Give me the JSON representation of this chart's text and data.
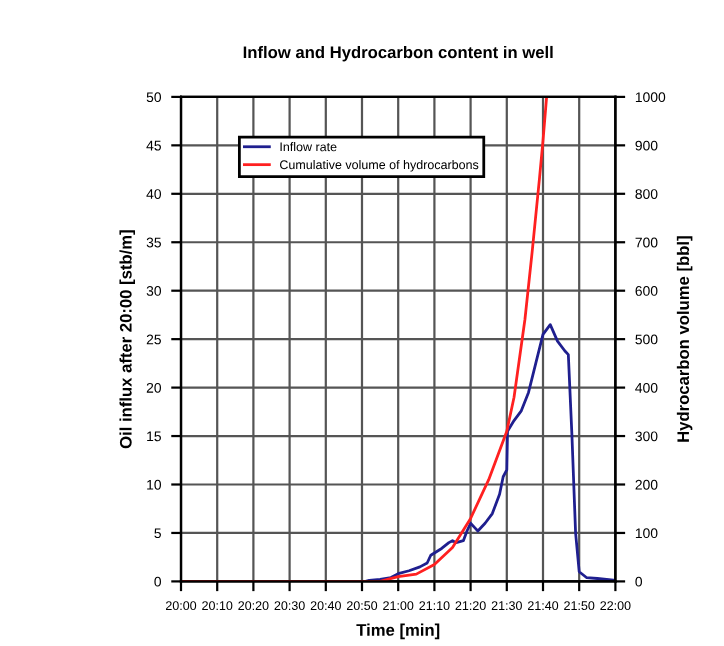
{
  "chart_data": {
    "type": "line",
    "title": "Inflow and Hydrocarbon content in well",
    "xlabel": "Time [min]",
    "ylabel": "Oil influx after 20:00 [stb/m]",
    "y2label": "Hydrocarbon volume [bbl]",
    "xlim": [
      20,
      22
    ],
    "xticks": [
      {
        "value": 20,
        "label": "20:00"
      },
      {
        "value": 20.1667,
        "label": "20:10"
      },
      {
        "value": 20.3333,
        "label": "20:20"
      },
      {
        "value": 20.5,
        "label": "20:30"
      },
      {
        "value": 20.6667,
        "label": "20:40"
      },
      {
        "value": 20.8333,
        "label": "20:50"
      },
      {
        "value": 21,
        "label": "21:00"
      },
      {
        "value": 21.1667,
        "label": "21:10"
      },
      {
        "value": 21.3333,
        "label": "21:20"
      },
      {
        "value": 21.5,
        "label": "21:30"
      },
      {
        "value": 21.6667,
        "label": "21:40"
      },
      {
        "value": 21.8333,
        "label": "21:50"
      },
      {
        "value": 22,
        "label": "22:00"
      }
    ],
    "ylim": [
      0,
      50
    ],
    "yticks": [
      0,
      5,
      10,
      15,
      20,
      25,
      30,
      35,
      40,
      45,
      50
    ],
    "y2lim": [
      0,
      1000
    ],
    "y2ticks": [
      0,
      100,
      200,
      300,
      400,
      500,
      600,
      700,
      800,
      900,
      1000
    ],
    "grid": true,
    "legend": "top left",
    "marker": "none",
    "line_style": "solid",
    "series": [
      {
        "name": "Inflow rate",
        "color": "#1f1f8f",
        "x": [
          20,
          20.85,
          20.8667,
          20.9167,
          20.9667,
          21,
          21.05,
          21.1,
          21.1333,
          21.15,
          21.2,
          21.2333,
          21.25,
          21.2667,
          21.3,
          21.3167,
          21.3333,
          21.35,
          21.3667,
          21.4,
          21.4333,
          21.4667,
          21.4833,
          21.5,
          21.5033,
          21.5333,
          21.5667,
          21.6,
          21.6333,
          21.6667,
          21.7,
          21.7333,
          21.7667,
          21.7833,
          21.8,
          21.8167,
          21.8333,
          21.8667,
          21.9167,
          22
        ],
        "values": [
          0,
          0,
          0.1,
          0.2,
          0.4,
          0.8,
          1.1,
          1.5,
          1.9,
          2.7,
          3.4,
          4.0,
          4.2,
          4.0,
          4.2,
          5.2,
          6.0,
          5.6,
          5.2,
          6.0,
          7.0,
          9.0,
          10.8,
          11.5,
          15.5,
          16.6,
          17.6,
          19.5,
          22.5,
          25.5,
          26.5,
          24.8,
          23.8,
          23.4,
          15,
          5,
          1.0,
          0.4,
          0.3,
          0.1
        ]
      },
      {
        "name": "Cumulative volume of hydrocarbons",
        "color": "#ff2020",
        "axis": "y2",
        "x": [
          20,
          20.9167,
          21,
          21.0833,
          21.1667,
          21.25,
          21.3333,
          21.4167,
          21.5,
          21.5333,
          21.5833,
          21.6167,
          21.65,
          21.6667,
          21.6833
        ],
        "values": [
          0,
          0,
          10,
          15,
          35,
          70,
          130,
          210,
          310,
          380,
          540,
          680,
          830,
          910,
          1000
        ]
      }
    ]
  }
}
